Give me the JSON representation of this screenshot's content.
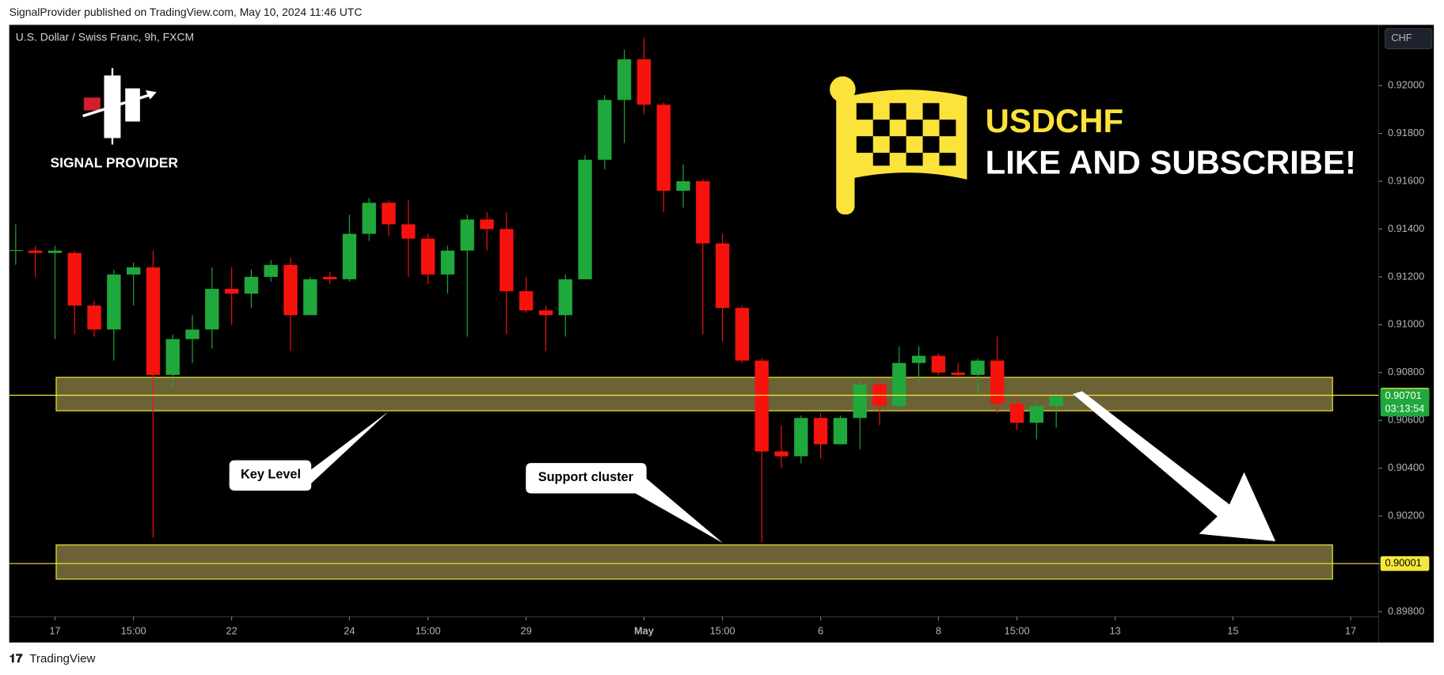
{
  "header": "SignalProvider published on TradingView.com, May 10, 2024 11:46 UTC",
  "footer": "TradingView",
  "chart_data": {
    "type": "candlestick",
    "symbol": "U.S. Dollar / Swiss Franc, 9h, FXCM",
    "currency": "CHF",
    "logo_text": "SIGNAL PROVIDER",
    "title": "USDCHF",
    "subtitle": "LIKE AND SUBSCRIBE!",
    "annotations": [
      "Key Level",
      "Support cluster"
    ],
    "up_color": "#1fa83c",
    "down_color": "#f7120e",
    "open": [
      0.9131,
      0.9131,
      0.913,
      0.913,
      0.9108,
      0.9098,
      0.9121,
      0.9124,
      0.9079,
      0.9094,
      0.9098,
      0.9115,
      0.9113,
      0.912,
      0.9125,
      0.9104,
      0.912,
      0.9119,
      0.9138,
      0.9151,
      0.9142,
      0.9136,
      0.9121,
      0.9131,
      0.9144,
      0.914,
      0.9114,
      0.9106,
      0.9104,
      0.9119,
      0.9169,
      0.9194,
      0.9211,
      0.9192,
      0.9156,
      0.916,
      0.9134,
      0.9107,
      0.9085,
      0.9047,
      0.9045,
      0.9061,
      0.905,
      0.9061,
      0.9075,
      0.9066,
      0.9084,
      0.9087,
      0.908,
      0.9079,
      0.9085,
      0.9067,
      0.9059,
      0.9066
    ],
    "high": [
      0.9142,
      0.9133,
      0.9133,
      0.9131,
      0.911,
      0.9123,
      0.9126,
      0.9131,
      0.9096,
      0.9104,
      0.9124,
      0.9124,
      0.9123,
      0.9127,
      0.9128,
      0.912,
      0.9122,
      0.9146,
      0.9153,
      0.9152,
      0.9152,
      0.9138,
      0.9133,
      0.9146,
      0.9147,
      0.9147,
      0.912,
      0.9108,
      0.9121,
      0.9171,
      0.9196,
      0.9215,
      0.922,
      0.9193,
      0.9167,
      0.9161,
      0.9138,
      0.9108,
      0.9086,
      0.9058,
      0.9062,
      0.9063,
      0.9062,
      0.9077,
      0.9077,
      0.9091,
      0.9091,
      0.9088,
      0.9084,
      0.9086,
      0.9095,
      0.907,
      0.9068,
      0.90705
    ],
    "low": [
      0.9125,
      0.912,
      0.9094,
      0.9096,
      0.9095,
      0.9085,
      0.9108,
      0.9011,
      0.9074,
      0.9084,
      0.909,
      0.91,
      0.9107,
      0.9118,
      0.9089,
      0.9104,
      0.9117,
      0.9118,
      0.9135,
      0.9137,
      0.912,
      0.9117,
      0.9113,
      0.9095,
      0.9131,
      0.9096,
      0.9105,
      0.9089,
      0.9095,
      0.9119,
      0.9165,
      0.9176,
      0.9188,
      0.9147,
      0.9149,
      0.9096,
      0.9093,
      0.9084,
      0.9009,
      0.904,
      0.9042,
      0.9044,
      0.905,
      0.9048,
      0.9058,
      0.9065,
      0.9076,
      0.9079,
      0.9078,
      0.9071,
      0.9063,
      0.9056,
      0.9052,
      0.9057
    ],
    "close": [
      0.91312,
      0.913,
      0.9131,
      0.9108,
      0.9098,
      0.9121,
      0.9124,
      0.9079,
      0.9094,
      0.9098,
      0.9115,
      0.9113,
      0.912,
      0.9125,
      0.9104,
      0.9119,
      0.9119,
      0.9138,
      0.9151,
      0.9142,
      0.9136,
      0.9121,
      0.9131,
      0.9144,
      0.914,
      0.9114,
      0.9106,
      0.9104,
      0.9119,
      0.9169,
      0.9194,
      0.9211,
      0.9192,
      0.9156,
      0.916,
      0.9134,
      0.9107,
      0.9085,
      0.9047,
      0.9045,
      0.9061,
      0.905,
      0.9061,
      0.9075,
      0.9066,
      0.9084,
      0.9087,
      0.908,
      0.9079,
      0.9085,
      0.9067,
      0.9059,
      0.9066,
      0.90701
    ],
    "xlim": [
      -0.33,
      69.42
    ],
    "xticks": [
      {
        "value": 2,
        "label": "17"
      },
      {
        "value": 6,
        "label": "15:00"
      },
      {
        "value": 11,
        "label": "22"
      },
      {
        "value": 17,
        "label": "24"
      },
      {
        "value": 21,
        "label": "15:00"
      },
      {
        "value": 26,
        "label": "29"
      },
      {
        "value": 32,
        "label": "May"
      },
      {
        "value": 36,
        "label": "15:00"
      },
      {
        "value": 41,
        "label": "6"
      },
      {
        "value": 47,
        "label": "8"
      },
      {
        "value": 51,
        "label": "15:00"
      },
      {
        "value": 56,
        "label": "13"
      },
      {
        "value": 62,
        "label": "15"
      },
      {
        "value": 68,
        "label": "17"
      }
    ],
    "ylim": [
      0.89671,
      0.92254
    ],
    "yticks": [
      {
        "value": 0.898,
        "label": "0.89800"
      },
      {
        "value": 0.9,
        "label": "0.90000"
      },
      {
        "value": 0.902,
        "label": "0.90200"
      },
      {
        "value": 0.904,
        "label": "0.90400"
      },
      {
        "value": 0.906,
        "label": "0.90600"
      },
      {
        "value": 0.908,
        "label": "0.90800"
      },
      {
        "value": 0.91,
        "label": "0.91000"
      },
      {
        "value": 0.912,
        "label": "0.91200"
      },
      {
        "value": 0.914,
        "label": "0.91400"
      },
      {
        "value": 0.916,
        "label": "0.91600"
      },
      {
        "value": 0.918,
        "label": "0.91800"
      },
      {
        "value": 0.92,
        "label": "0.92000"
      }
    ],
    "zones": [
      {
        "top": 0.9078,
        "bottom": 0.9064
      },
      {
        "top": 0.90079,
        "bottom": 0.89936
      }
    ],
    "zone_color": "#6b6336",
    "level_color": "#f5e63b",
    "levels": [
      0.90705,
      0.90001
    ],
    "last_price": {
      "value": 0.90701,
      "countdown": "03:13:54"
    }
  }
}
